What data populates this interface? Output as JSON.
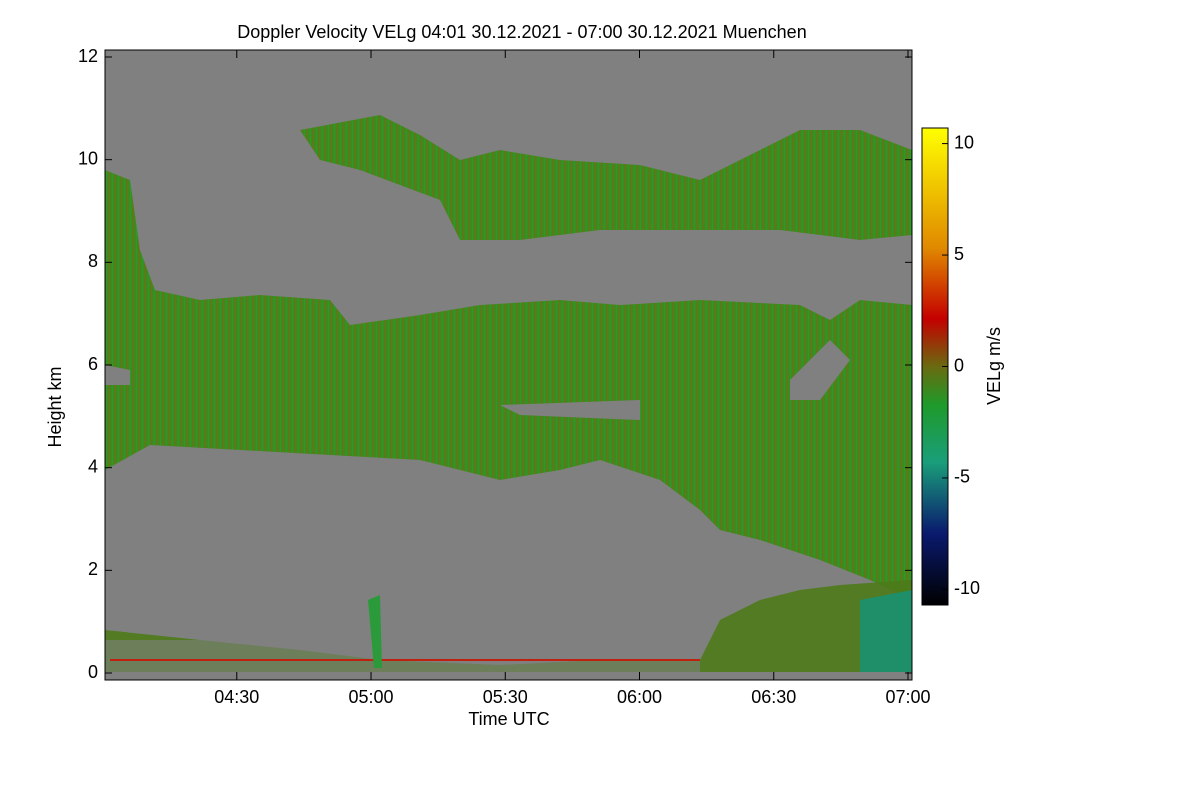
{
  "chart_data": {
    "type": "heatmap",
    "title": "Doppler Velocity VELg   04:01 30.12.2021 - 07:00 30.12.2021 Muenchen",
    "xlabel": "Time UTC",
    "ylabel": "Height km",
    "xlim": [
      "04:01",
      "07:00"
    ],
    "xticks": [
      "04:30",
      "05:00",
      "05:30",
      "06:00",
      "06:30",
      "07:00"
    ],
    "ylim": [
      0,
      12
    ],
    "yticks": [
      0,
      2,
      4,
      6,
      8,
      10,
      12
    ],
    "colorbar": {
      "label": "VELg m/s",
      "lim": [
        -10.7,
        10.7
      ],
      "ticks": [
        -10,
        -5,
        0,
        5,
        10
      ]
    }
  }
}
